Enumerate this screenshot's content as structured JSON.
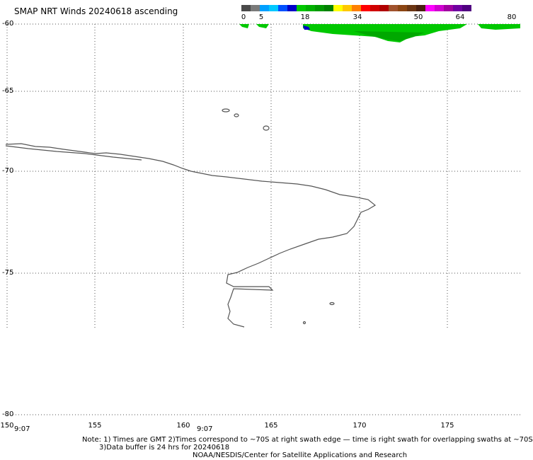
{
  "title": "SMAP NRT Winds 20240618 ascending",
  "colorbar": {
    "colors": [
      "#4a4a4a",
      "#7a7a7a",
      "#00a0ff",
      "#00c8ff",
      "#0050ff",
      "#0000c8",
      "#00c800",
      "#00b000",
      "#009800",
      "#008000",
      "#ffff00",
      "#ffc800",
      "#ff8000",
      "#ff0000",
      "#d00000",
      "#b00000",
      "#a0522d",
      "#8b4513",
      "#6b3513",
      "#4a2010",
      "#ff00ff",
      "#d000d0",
      "#a000a0",
      "#7000a0",
      "#500080"
    ],
    "labels": [
      "0",
      "5",
      "18",
      "34",
      "50",
      "64",
      "80"
    ]
  },
  "axes": {
    "lat_labels": [
      "-60",
      "-65",
      "-70",
      "-75",
      "-80"
    ],
    "lon_labels": [
      "150",
      "155",
      "160",
      "165",
      "170",
      "175"
    ]
  },
  "times": [
    "9:07",
    "9:07"
  ],
  "notes": [
    "Note: 1) Times are GMT 2)Times correspond to ~70S at right swath edge — time is right swath for overlapping swaths at ~70S",
    "3)Data buffer is 24 hrs for 20240618",
    "NOAA/NESDIS/Center for Satellite Applications and Research"
  ],
  "map_features": [
    "coastline-antarctica",
    "wind-swath-top"
  ]
}
